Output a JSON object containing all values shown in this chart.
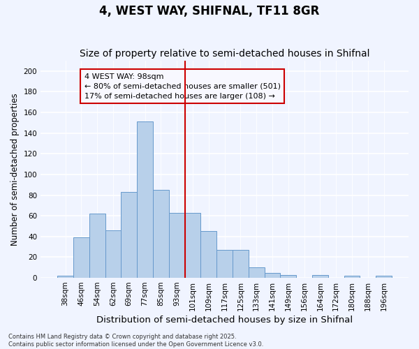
{
  "title": "4, WEST WAY, SHIFNAL, TF11 8GR",
  "subtitle": "Size of property relative to semi-detached houses in Shifnal",
  "xlabel": "Distribution of semi-detached houses by size in Shifnal",
  "ylabel": "Number of semi-detached properties",
  "categories": [
    "38sqm",
    "46sqm",
    "54sqm",
    "62sqm",
    "69sqm",
    "77sqm",
    "85sqm",
    "93sqm",
    "101sqm",
    "109sqm",
    "117sqm",
    "125sqm",
    "133sqm",
    "141sqm",
    "149sqm",
    "156sqm",
    "164sqm",
    "172sqm",
    "180sqm",
    "188sqm",
    "196sqm"
  ],
  "values": [
    2,
    39,
    62,
    46,
    83,
    151,
    85,
    63,
    63,
    45,
    27,
    27,
    10,
    5,
    3,
    0,
    3,
    0,
    2,
    0,
    2
  ],
  "bar_color": "#b8d0ea",
  "bar_edge_color": "#6699cc",
  "subject_bin_index": 8,
  "subject_line_color": "#cc0000",
  "annotation_line1": "4 WEST WAY: 98sqm",
  "annotation_line2": "← 80% of semi-detached houses are smaller (501)",
  "annotation_line3": "17% of semi-detached houses are larger (108) →",
  "annotation_box_color": "#cc0000",
  "annotation_bg": "#f8f8ff",
  "ylim": [
    0,
    210
  ],
  "yticks": [
    0,
    20,
    40,
    60,
    80,
    100,
    120,
    140,
    160,
    180,
    200
  ],
  "background_color": "#f0f4ff",
  "plot_bg_color": "#f0f4ff",
  "grid_color": "#ffffff",
  "title_fontsize": 12,
  "subtitle_fontsize": 10,
  "xlabel_fontsize": 9.5,
  "ylabel_fontsize": 8.5,
  "tick_fontsize": 7.5,
  "annotation_fontsize": 8,
  "footer_fontsize": 6,
  "footer": "Contains HM Land Registry data © Crown copyright and database right 2025.\nContains public sector information licensed under the Open Government Licence v3.0."
}
